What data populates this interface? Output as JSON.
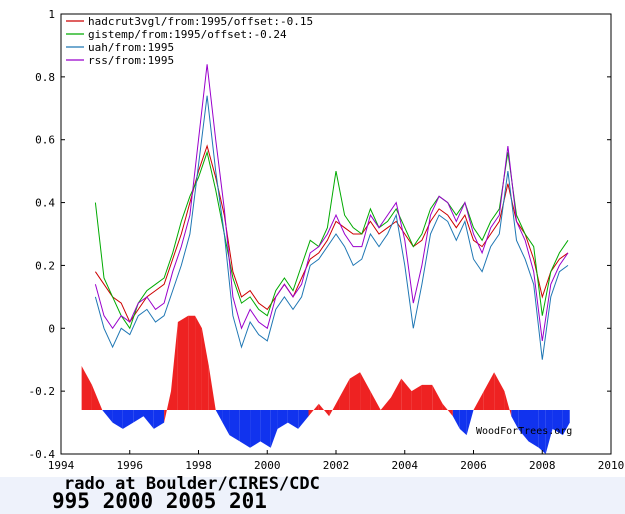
{
  "chart_data": {
    "type": "line",
    "xlim": [
      1994,
      2010
    ],
    "ylim": [
      -0.4,
      1.0
    ],
    "xticks": [
      "1994",
      "1996",
      "1998",
      "2000",
      "2002",
      "2004",
      "2006",
      "2008",
      "2010"
    ],
    "yticks": [
      "-0.4",
      "-0.2",
      "0",
      "0.2",
      "0.4",
      "0.6",
      "0.8",
      "1"
    ],
    "legend_position": "top-left",
    "grid": false,
    "series": [
      {
        "name": "hadcrut3vgl/from:1995/offset:-0.15",
        "color": "#cc0000",
        "x": [
          1995.0,
          1995.25,
          1995.5,
          1995.75,
          1996.0,
          1996.25,
          1996.5,
          1996.75,
          1997.0,
          1997.25,
          1997.5,
          1997.75,
          1998.0,
          1998.25,
          1998.5,
          1998.75,
          1999.0,
          1999.25,
          1999.5,
          1999.75,
          2000.0,
          2000.25,
          2000.5,
          2000.75,
          2001.0,
          2001.25,
          2001.5,
          2001.75,
          2002.0,
          2002.25,
          2002.5,
          2002.75,
          2003.0,
          2003.25,
          2003.5,
          2003.75,
          2004.0,
          2004.25,
          2004.5,
          2004.75,
          2005.0,
          2005.25,
          2005.5,
          2005.75,
          2006.0,
          2006.25,
          2006.5,
          2006.75,
          2007.0,
          2007.25,
          2007.5,
          2007.75,
          2008.0,
          2008.25,
          2008.5,
          2008.75
        ],
        "values": [
          0.18,
          0.14,
          0.1,
          0.08,
          0.02,
          0.06,
          0.1,
          0.12,
          0.14,
          0.22,
          0.3,
          0.4,
          0.5,
          0.58,
          0.48,
          0.36,
          0.18,
          0.1,
          0.12,
          0.08,
          0.06,
          0.1,
          0.14,
          0.1,
          0.16,
          0.22,
          0.24,
          0.28,
          0.34,
          0.32,
          0.3,
          0.3,
          0.34,
          0.3,
          0.32,
          0.34,
          0.3,
          0.26,
          0.28,
          0.34,
          0.38,
          0.36,
          0.32,
          0.36,
          0.28,
          0.26,
          0.3,
          0.34,
          0.46,
          0.34,
          0.3,
          0.22,
          0.1,
          0.18,
          0.22,
          0.24
        ]
      },
      {
        "name": "gistemp/from:1995/offset:-0.24",
        "color": "#00aa00",
        "x": [
          1995.0,
          1995.25,
          1995.5,
          1995.75,
          1996.0,
          1996.25,
          1996.5,
          1996.75,
          1997.0,
          1997.25,
          1997.5,
          1997.75,
          1998.0,
          1998.25,
          1998.5,
          1998.75,
          1999.0,
          1999.25,
          1999.5,
          1999.75,
          2000.0,
          2000.25,
          2000.5,
          2000.75,
          2001.0,
          2001.25,
          2001.5,
          2001.75,
          2002.0,
          2002.25,
          2002.5,
          2002.75,
          2003.0,
          2003.25,
          2003.5,
          2003.75,
          2004.0,
          2004.25,
          2004.5,
          2004.75,
          2005.0,
          2005.25,
          2005.5,
          2005.75,
          2006.0,
          2006.25,
          2006.5,
          2006.75,
          2007.0,
          2007.25,
          2007.5,
          2007.75,
          2008.0,
          2008.25,
          2008.5,
          2008.75
        ],
        "values": [
          0.4,
          0.16,
          0.1,
          0.04,
          0.0,
          0.08,
          0.12,
          0.14,
          0.16,
          0.24,
          0.34,
          0.42,
          0.48,
          0.56,
          0.44,
          0.3,
          0.16,
          0.08,
          0.1,
          0.06,
          0.04,
          0.12,
          0.16,
          0.12,
          0.2,
          0.28,
          0.26,
          0.32,
          0.5,
          0.36,
          0.32,
          0.3,
          0.38,
          0.32,
          0.34,
          0.38,
          0.32,
          0.26,
          0.3,
          0.38,
          0.42,
          0.4,
          0.36,
          0.4,
          0.32,
          0.28,
          0.34,
          0.38,
          0.56,
          0.36,
          0.3,
          0.26,
          0.04,
          0.18,
          0.24,
          0.28
        ]
      },
      {
        "name": "uah/from:1995",
        "color": "#1f77b4",
        "x": [
          1995.0,
          1995.25,
          1995.5,
          1995.75,
          1996.0,
          1996.25,
          1996.5,
          1996.75,
          1997.0,
          1997.25,
          1997.5,
          1997.75,
          1998.0,
          1998.25,
          1998.5,
          1998.75,
          1999.0,
          1999.25,
          1999.5,
          1999.75,
          2000.0,
          2000.25,
          2000.5,
          2000.75,
          2001.0,
          2001.25,
          2001.5,
          2001.75,
          2002.0,
          2002.25,
          2002.5,
          2002.75,
          2003.0,
          2003.25,
          2003.5,
          2003.75,
          2004.0,
          2004.25,
          2004.5,
          2004.75,
          2005.0,
          2005.25,
          2005.5,
          2005.75,
          2006.0,
          2006.25,
          2006.5,
          2006.75,
          2007.0,
          2007.25,
          2007.5,
          2007.75,
          2008.0,
          2008.25,
          2008.5,
          2008.75
        ],
        "values": [
          0.1,
          0.0,
          -0.06,
          0.0,
          -0.02,
          0.04,
          0.06,
          0.02,
          0.04,
          0.12,
          0.2,
          0.3,
          0.52,
          0.74,
          0.5,
          0.3,
          0.04,
          -0.06,
          0.02,
          -0.02,
          -0.04,
          0.06,
          0.1,
          0.06,
          0.1,
          0.2,
          0.22,
          0.26,
          0.3,
          0.26,
          0.2,
          0.22,
          0.3,
          0.26,
          0.3,
          0.36,
          0.2,
          0.0,
          0.14,
          0.3,
          0.36,
          0.34,
          0.28,
          0.34,
          0.22,
          0.18,
          0.26,
          0.3,
          0.5,
          0.28,
          0.22,
          0.14,
          -0.1,
          0.1,
          0.18,
          0.2
        ]
      },
      {
        "name": "rss/from:1995",
        "color": "#9900cc",
        "x": [
          1995.0,
          1995.25,
          1995.5,
          1995.75,
          1996.0,
          1996.25,
          1996.5,
          1996.75,
          1997.0,
          1997.25,
          1997.5,
          1997.75,
          1998.0,
          1998.25,
          1998.5,
          1998.75,
          1999.0,
          1999.25,
          1999.5,
          1999.75,
          2000.0,
          2000.25,
          2000.5,
          2000.75,
          2001.0,
          2001.25,
          2001.5,
          2001.75,
          2002.0,
          2002.25,
          2002.5,
          2002.75,
          2003.0,
          2003.25,
          2003.5,
          2003.75,
          2004.0,
          2004.25,
          2004.5,
          2004.75,
          2005.0,
          2005.25,
          2005.5,
          2005.75,
          2006.0,
          2006.25,
          2006.5,
          2006.75,
          2007.0,
          2007.25,
          2007.5,
          2007.75,
          2008.0,
          2008.25,
          2008.5,
          2008.75
        ],
        "values": [
          0.14,
          0.04,
          0.0,
          0.04,
          0.02,
          0.08,
          0.1,
          0.06,
          0.08,
          0.18,
          0.26,
          0.36,
          0.6,
          0.84,
          0.6,
          0.38,
          0.1,
          0.0,
          0.06,
          0.02,
          0.0,
          0.1,
          0.14,
          0.1,
          0.14,
          0.24,
          0.26,
          0.3,
          0.36,
          0.3,
          0.26,
          0.26,
          0.36,
          0.32,
          0.36,
          0.4,
          0.28,
          0.08,
          0.2,
          0.36,
          0.42,
          0.4,
          0.34,
          0.4,
          0.3,
          0.24,
          0.32,
          0.36,
          0.58,
          0.34,
          0.28,
          0.18,
          -0.04,
          0.14,
          0.2,
          0.24
        ]
      },
      {
        "name": "",
        "type": "area",
        "baseline": -0.26,
        "x": [
          1994.6,
          1994.9,
          1995.2,
          1995.5,
          1995.8,
          1996.1,
          1996.4,
          1996.7,
          1997.0,
          1997.2,
          1997.4,
          1997.7,
          1997.9,
          1998.1,
          1998.3,
          1998.5,
          1998.7,
          1998.9,
          1999.2,
          1999.5,
          1999.8,
          2000.1,
          2000.3,
          2000.6,
          2000.9,
          2001.2,
          2001.5,
          2001.8,
          2002.1,
          2002.4,
          2002.7,
          2003.0,
          2003.3,
          2003.6,
          2003.9,
          2004.2,
          2004.5,
          2004.8,
          2005.1,
          2005.4,
          2005.6,
          2005.8,
          2006.0,
          2006.3,
          2006.6,
          2006.9,
          2007.1,
          2007.3,
          2007.6,
          2007.9,
          2008.1,
          2008.3,
          2008.6,
          2008.8
        ],
        "values": [
          -0.12,
          -0.18,
          -0.26,
          -0.3,
          -0.32,
          -0.3,
          -0.28,
          -0.32,
          -0.3,
          -0.2,
          0.02,
          0.04,
          0.04,
          0.0,
          -0.12,
          -0.26,
          -0.3,
          -0.34,
          -0.36,
          -0.38,
          -0.36,
          -0.38,
          -0.32,
          -0.3,
          -0.32,
          -0.28,
          -0.24,
          -0.28,
          -0.22,
          -0.16,
          -0.14,
          -0.2,
          -0.26,
          -0.22,
          -0.16,
          -0.2,
          -0.18,
          -0.18,
          -0.24,
          -0.28,
          -0.32,
          -0.34,
          -0.26,
          -0.2,
          -0.14,
          -0.2,
          -0.28,
          -0.32,
          -0.36,
          -0.38,
          -0.4,
          -0.32,
          -0.34,
          -0.3
        ]
      }
    ]
  },
  "watermark": "WoodForTrees.org",
  "caption": {
    "line1": "rado  at  Boulder/CIRES/CDC",
    "line2": "995        2000          2005          201"
  }
}
